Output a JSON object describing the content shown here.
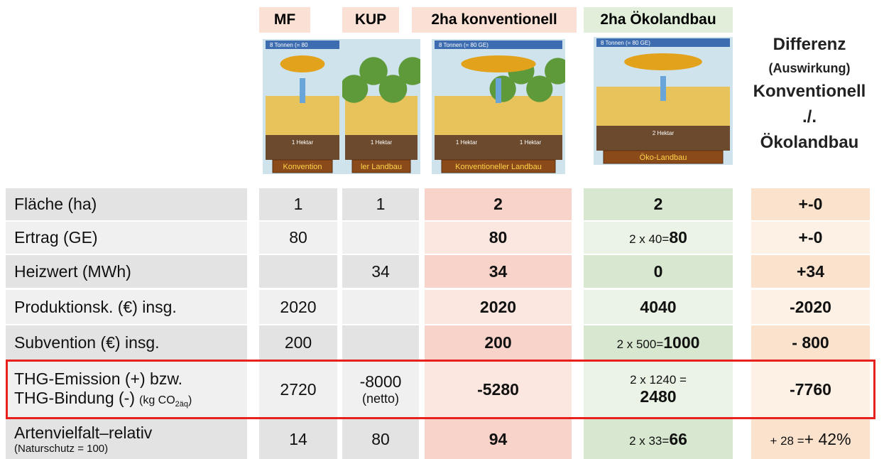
{
  "header": {
    "columns": [
      "MF",
      "KUP",
      "2ha konventionell",
      "2ha Ökolandbau"
    ],
    "difference": [
      "Differenz",
      "(Auswirkung)",
      "Konventionell",
      "./.",
      "Ökolandbau"
    ]
  },
  "images": [
    {
      "load": "8 Tonnen (= 80",
      "fields": [
        "1 Hektar"
      ],
      "base": "Konvention"
    },
    {
      "load": null,
      "fields": [
        "1 Hektar"
      ],
      "base": "ler Landbau"
    },
    {
      "load": "8 Tonnen (= 80 GE)",
      "fields": [
        "1 Hektar",
        "1 Hektar"
      ],
      "base": "Konventioneller Landbau"
    },
    {
      "load": "8 Tonnen (= 80 GE)",
      "fields": [
        "2 Hektar"
      ],
      "base": "Öko-Landbau"
    }
  ],
  "rows": [
    {
      "label": [
        "Fläche (ha)"
      ],
      "cells": [
        "1",
        "1",
        "2",
        "2",
        "+-0"
      ]
    },
    {
      "label": [
        "Ertrag (GE)"
      ],
      "cells": [
        "80",
        null,
        "80",
        {
          "prefix": "2 x 40=",
          "main": "80"
        },
        "+-0"
      ]
    },
    {
      "label": [
        "Heizwert (MWh)"
      ],
      "cells": [
        null,
        "34",
        "34",
        "0",
        "+34"
      ]
    },
    {
      "label": [
        "Produktionsk. (€) insg."
      ],
      "cells": [
        "2020",
        null,
        "2020",
        "4040",
        "-2020"
      ]
    },
    {
      "label": [
        "Subvention (€) insg."
      ],
      "cells": [
        "200",
        null,
        "200",
        {
          "prefix": "2 x 500=",
          "main": "1000"
        },
        "- 800"
      ]
    },
    {
      "label": [
        "THG-Emission (+) bzw.",
        "THG-Bindung  (-)"
      ],
      "unit": {
        "prefix": "(kg CO",
        "sub": "2äq",
        "suffix": ")"
      },
      "cells": [
        "2720",
        {
          "top": "-8000",
          "bottom": "(netto)"
        },
        "-5280",
        {
          "top": "2 x 1240 =",
          "bottom": "2480"
        },
        "-7760"
      ]
    },
    {
      "label": [
        "Artenvielfalt–relativ"
      ],
      "note": "(Naturschutz = 100)",
      "cells": [
        "14",
        "80",
        "94",
        {
          "prefix": "2 x 33=",
          "main": "66"
        },
        {
          "prefix": "+ 28 =",
          "main": "+ 42%"
        }
      ]
    }
  ]
}
